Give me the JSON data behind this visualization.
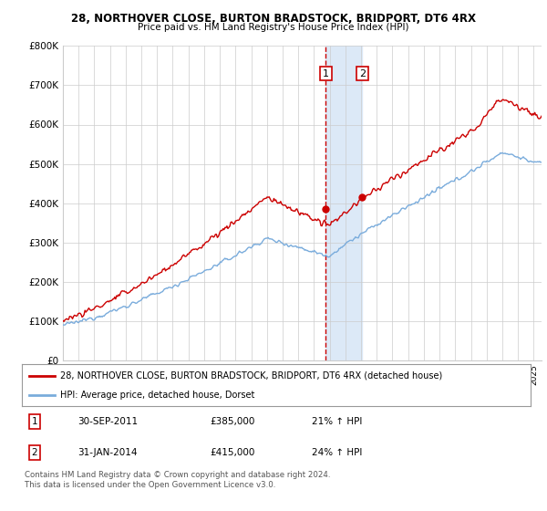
{
  "title1": "28, NORTHOVER CLOSE, BURTON BRADSTOCK, BRIDPORT, DT6 4RX",
  "title2": "Price paid vs. HM Land Registry's House Price Index (HPI)",
  "legend_line1": "28, NORTHOVER CLOSE, BURTON BRADSTOCK, BRIDPORT, DT6 4RX (detached house)",
  "legend_line2": "HPI: Average price, detached house, Dorset",
  "transaction1_date": "30-SEP-2011",
  "transaction1_price": "£385,000",
  "transaction1_hpi": "21% ↑ HPI",
  "transaction2_date": "31-JAN-2014",
  "transaction2_price": "£415,000",
  "transaction2_hpi": "24% ↑ HPI",
  "footer": "Contains HM Land Registry data © Crown copyright and database right 2024.\nThis data is licensed under the Open Government Licence v3.0.",
  "red_color": "#cc0000",
  "blue_color": "#7aacdc",
  "shading_color": "#dce9f7",
  "background_color": "#ffffff",
  "grid_color": "#cccccc",
  "ylim": [
    0,
    800000
  ],
  "yticks": [
    0,
    100000,
    200000,
    300000,
    400000,
    500000,
    600000,
    700000,
    800000
  ],
  "ytick_labels": [
    "£0",
    "£100K",
    "£200K",
    "£300K",
    "£400K",
    "£500K",
    "£600K",
    "£700K",
    "£800K"
  ],
  "transaction1_x": 2011.75,
  "transaction2_x": 2014.08,
  "transaction1_y": 385000,
  "transaction2_y": 415000,
  "xmin": 1995.0,
  "xmax": 2025.5
}
